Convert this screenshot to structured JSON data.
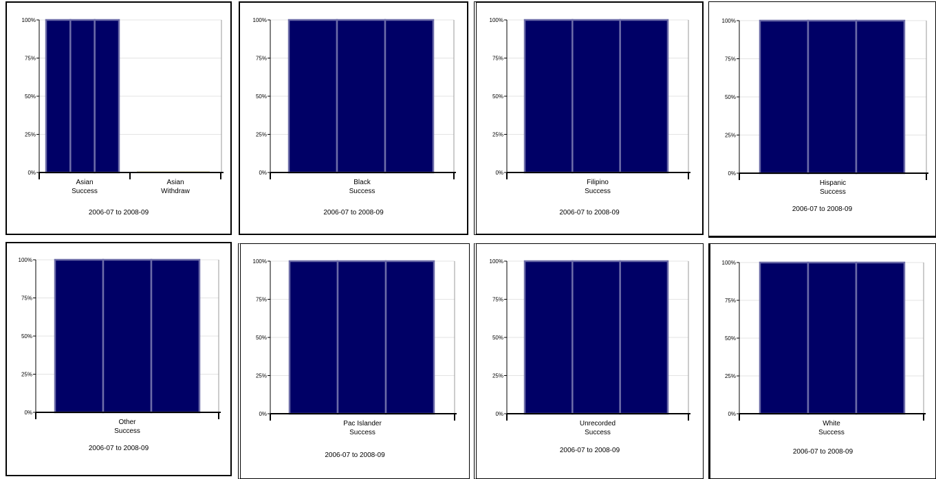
{
  "colors": {
    "bar": "#000066",
    "bar_outline": "#6c6ca8",
    "withdraw": "#b8b070",
    "gridline": "#e3e3e3",
    "axis": "#000000",
    "frame": "#000000"
  },
  "chart_data": [
    {
      "type": "bar",
      "categories": [
        [
          "Asian",
          "Success"
        ],
        [
          "Asian",
          "Withdraw"
        ]
      ],
      "series": [
        {
          "values": [
            100,
            0
          ]
        },
        {
          "values": [
            100,
            0
          ]
        },
        {
          "values": [
            100,
            0
          ]
        }
      ],
      "yticks": [
        "0%",
        "25%",
        "50%",
        "75%",
        "100%"
      ],
      "ylim": [
        0,
        100
      ],
      "grid": true,
      "caption": "2006-07 to 2008-09"
    },
    {
      "type": "bar",
      "categories": [
        [
          "Black",
          "Success"
        ]
      ],
      "series": [
        {
          "values": [
            100
          ]
        },
        {
          "values": [
            100
          ]
        },
        {
          "values": [
            100
          ]
        }
      ],
      "yticks": [
        "0%",
        "25%",
        "50%",
        "75%",
        "100%"
      ],
      "ylim": [
        0,
        100
      ],
      "grid": true,
      "caption": "2006-07 to 2008-09"
    },
    {
      "type": "bar",
      "categories": [
        [
          "Filipino",
          "Success"
        ]
      ],
      "series": [
        {
          "values": [
            100
          ]
        },
        {
          "values": [
            100
          ]
        },
        {
          "values": [
            100
          ]
        }
      ],
      "yticks": [
        "0%",
        "25%",
        "50%",
        "75%",
        "100%"
      ],
      "ylim": [
        0,
        100
      ],
      "grid": true,
      "caption": "2006-07 to 2008-09"
    },
    {
      "type": "bar",
      "categories": [
        [
          "Hispanic",
          "Success"
        ]
      ],
      "series": [
        {
          "values": [
            100
          ]
        },
        {
          "values": [
            100
          ]
        },
        {
          "values": [
            100
          ]
        }
      ],
      "yticks": [
        "0%",
        "25%",
        "50%",
        "75%",
        "100%"
      ],
      "ylim": [
        0,
        100
      ],
      "grid": true,
      "caption": "2006-07 to 2008-09"
    },
    {
      "type": "bar",
      "categories": [
        [
          "Other",
          "Success"
        ]
      ],
      "series": [
        {
          "values": [
            100
          ]
        },
        {
          "values": [
            100
          ]
        },
        {
          "values": [
            100
          ]
        }
      ],
      "yticks": [
        "0%",
        "25%",
        "50%",
        "75%",
        "100%"
      ],
      "ylim": [
        0,
        100
      ],
      "grid": true,
      "caption": "2006-07 to 2008-09"
    },
    {
      "type": "bar",
      "categories": [
        [
          "Pac Islander",
          "Success"
        ]
      ],
      "series": [
        {
          "values": [
            100
          ]
        },
        {
          "values": [
            100
          ]
        },
        {
          "values": [
            100
          ]
        }
      ],
      "yticks": [
        "0%",
        "25%",
        "50%",
        "75%",
        "100%"
      ],
      "ylim": [
        0,
        100
      ],
      "grid": true,
      "caption": "2006-07 to 2008-09"
    },
    {
      "type": "bar",
      "categories": [
        [
          "Unrecorded",
          "Success"
        ]
      ],
      "series": [
        {
          "values": [
            100
          ]
        },
        {
          "values": [
            100
          ]
        },
        {
          "values": [
            100
          ]
        }
      ],
      "yticks": [
        "0%",
        "25%",
        "50%",
        "75%",
        "100%"
      ],
      "ylim": [
        0,
        100
      ],
      "grid": true,
      "caption": "2006-07 to 2008-09"
    },
    {
      "type": "bar",
      "categories": [
        [
          "White",
          "Success"
        ]
      ],
      "series": [
        {
          "values": [
            100
          ]
        },
        {
          "values": [
            100
          ]
        },
        {
          "values": [
            100
          ]
        }
      ],
      "yticks": [
        "0%",
        "25%",
        "50%",
        "75%",
        "100%"
      ],
      "ylim": [
        0,
        100
      ],
      "grid": true,
      "caption": "2006-07 to 2008-09"
    }
  ]
}
